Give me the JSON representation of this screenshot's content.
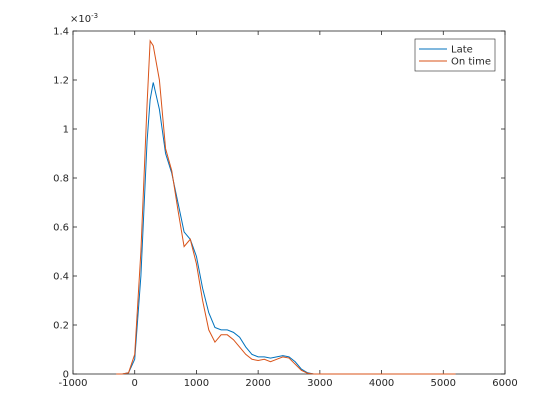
{
  "chart_data": {
    "type": "line",
    "x": [
      -300,
      -200,
      -100,
      0,
      100,
      200,
      250,
      300,
      400,
      500,
      600,
      700,
      800,
      900,
      1000,
      1100,
      1200,
      1300,
      1400,
      1500,
      1600,
      1700,
      1800,
      1900,
      2000,
      2100,
      2200,
      2300,
      2400,
      2500,
      2600,
      2700,
      2800,
      2900,
      4000,
      5200
    ],
    "series": [
      {
        "name": "Late",
        "color": "#0072bd",
        "values": [
          0,
          0,
          0.005,
          0.06,
          0.4,
          0.95,
          1.12,
          1.19,
          1.08,
          0.9,
          0.82,
          0.7,
          0.58,
          0.55,
          0.48,
          0.35,
          0.25,
          0.19,
          0.18,
          0.18,
          0.17,
          0.15,
          0.11,
          0.08,
          0.07,
          0.07,
          0.065,
          0.07,
          0.075,
          0.07,
          0.05,
          0.02,
          0.005,
          0,
          0,
          0
        ]
      },
      {
        "name": "On time",
        "color": "#d95319",
        "values": [
          0,
          0,
          0.005,
          0.08,
          0.5,
          1.1,
          1.36,
          1.34,
          1.2,
          0.92,
          0.83,
          0.67,
          0.52,
          0.55,
          0.45,
          0.3,
          0.18,
          0.13,
          0.16,
          0.16,
          0.14,
          0.11,
          0.08,
          0.06,
          0.055,
          0.06,
          0.05,
          0.06,
          0.07,
          0.065,
          0.04,
          0.015,
          0.003,
          0,
          0,
          0
        ]
      }
    ],
    "xlim": [
      -1000,
      6000
    ],
    "xticks": [
      -1000,
      0,
      1000,
      2000,
      3000,
      4000,
      5000,
      6000
    ],
    "ylim": [
      0,
      1.4
    ],
    "yticks": [
      0,
      0.2,
      0.4,
      0.6,
      0.8,
      1,
      1.2,
      1.4
    ],
    "y_multiplier": "×10",
    "y_multiplier_exponent": "-3",
    "legend": "top-right",
    "grid": false
  }
}
